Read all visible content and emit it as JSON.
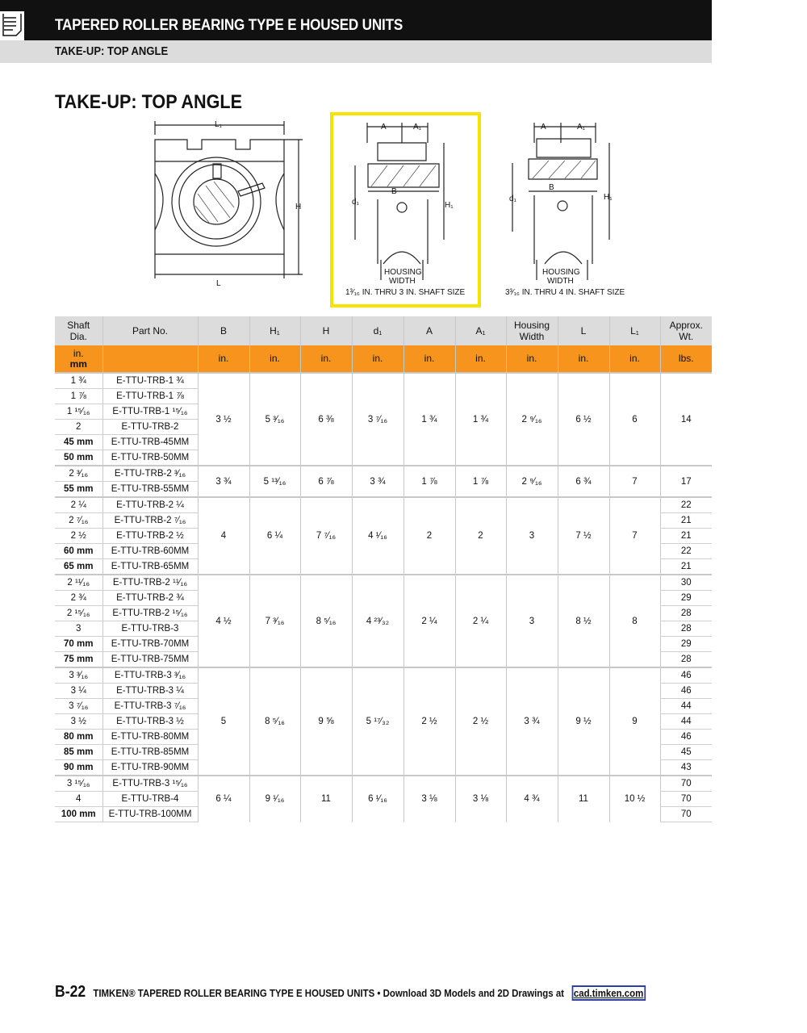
{
  "header": {
    "title": "TAPERED ROLLER BEARING TYPE E HOUSED UNITS",
    "subtitle": "TAKE-UP: TOP ANGLE",
    "icon": "document-list-icon"
  },
  "heading": "TAKE-UP: TOP ANGLE",
  "diagrams": {
    "left": {
      "L1": "L₁",
      "H": "H",
      "L": "L"
    },
    "middle": {
      "A": "A",
      "A1": "A₁",
      "B": "B",
      "d1": "d₁",
      "H1": "H₁",
      "housing1": "HOUSING",
      "housing2": "WIDTH",
      "caption": "1³⁄₁₆ IN. THRU 3 IN. SHAFT SIZE",
      "highlight_color": "#f5e400"
    },
    "right": {
      "A": "A",
      "A1": "A₁",
      "B": "B",
      "d1": "d₁",
      "H1": "H₁",
      "housing1": "HOUSING",
      "housing2": "WIDTH",
      "caption": "3³⁄₁₆ IN. THRU 4 IN. SHAFT SIZE"
    }
  },
  "table": {
    "columns": [
      "Shaft Dia.",
      "Part No.",
      "B",
      "H₁",
      "H",
      "d₁",
      "A",
      "A₁",
      "Housing Width",
      "L",
      "L₁",
      "Approx. Wt."
    ],
    "units": [
      "in. / mm",
      "",
      "in.",
      "in.",
      "in.",
      "in.",
      "in.",
      "in.",
      "in.",
      "in.",
      "in.",
      "lbs."
    ],
    "header_color": "#dcdcdc",
    "unit_row_color": "#f7941d",
    "groups": [
      {
        "rows": [
          [
            "1 ¾",
            "E-TTU-TRB-1 ¾"
          ],
          [
            "1 ⅞",
            "E-TTU-TRB-1 ⅞"
          ],
          [
            "1 ¹⁵⁄₁₆",
            "E-TTU-TRB-1 ¹⁵⁄₁₆"
          ],
          [
            "2",
            "E-TTU-TRB-2"
          ],
          [
            "45 mm",
            "E-TTU-TRB-45MM"
          ],
          [
            "50 mm",
            "E-TTU-TRB-50MM"
          ]
        ],
        "dims": [
          "3 ½",
          "5 ³⁄₁₆",
          "6 ⅜",
          "3 ⁷⁄₁₆",
          "1 ¾",
          "1 ¾",
          "2 ⁹⁄₁₆",
          "6 ½",
          "6"
        ],
        "weights": [
          "14"
        ]
      },
      {
        "rows": [
          [
            "2 ³⁄₁₆",
            "E-TTU-TRB-2 ³⁄₁₆"
          ],
          [
            "55 mm",
            "E-TTU-TRB-55MM"
          ]
        ],
        "dims": [
          "3 ¾",
          "5 ¹³⁄₁₆",
          "6 ⅞",
          "3 ¾",
          "1 ⅞",
          "1 ⅞",
          "2 ⁹⁄₁₆",
          "6 ¾",
          "7"
        ],
        "weights": [
          "17"
        ]
      },
      {
        "rows": [
          [
            "2 ¼",
            "E-TTU-TRB-2 ¼"
          ],
          [
            "2 ⁷⁄₁₆",
            "E-TTU-TRB-2 ⁷⁄₁₆"
          ],
          [
            "2 ½",
            "E-TTU-TRB-2 ½"
          ],
          [
            "60 mm",
            "E-TTU-TRB-60MM"
          ],
          [
            "65 mm",
            "E-TTU-TRB-65MM"
          ]
        ],
        "dims": [
          "4",
          "6 ¼",
          "7 ⁷⁄₁₆",
          "4 ¹⁄₁₆",
          "2",
          "2",
          "3",
          "7 ½",
          "7"
        ],
        "weights": [
          "22",
          "21",
          "21",
          "22",
          "21"
        ]
      },
      {
        "rows": [
          [
            "2 ¹¹⁄₁₆",
            "E-TTU-TRB-2 ¹¹⁄₁₆"
          ],
          [
            "2 ¾",
            "E-TTU-TRB-2 ¾"
          ],
          [
            "2 ¹⁵⁄₁₆",
            "E-TTU-TRB-2 ¹⁵⁄₁₆"
          ],
          [
            "3",
            "E-TTU-TRB-3"
          ],
          [
            "70 mm",
            "E-TTU-TRB-70MM"
          ],
          [
            "75 mm",
            "E-TTU-TRB-75MM"
          ]
        ],
        "dims": [
          "4 ½",
          "7 ³⁄₁₆",
          "8 ⁵⁄₁₆",
          "4 ²³⁄₃₂",
          "2 ¼",
          "2 ¼",
          "3",
          "8 ½",
          "8"
        ],
        "weights": [
          "30",
          "29",
          "28",
          "28",
          "29",
          "28"
        ]
      },
      {
        "rows": [
          [
            "3 ³⁄₁₆",
            "E-TTU-TRB-3 ³⁄₁₆"
          ],
          [
            "3 ¼",
            "E-TTU-TRB-3 ¼"
          ],
          [
            "3 ⁷⁄₁₆",
            "E-TTU-TRB-3 ⁷⁄₁₆"
          ],
          [
            "3 ½",
            "E-TTU-TRB-3 ½"
          ],
          [
            "80 mm",
            "E-TTU-TRB-80MM"
          ],
          [
            "85 mm",
            "E-TTU-TRB-85MM"
          ],
          [
            "90 mm",
            "E-TTU-TRB-90MM"
          ]
        ],
        "dims": [
          "5",
          "8 ⁵⁄₁₆",
          "9 ⅝",
          "5 ¹⁷⁄₃₂",
          "2 ½",
          "2 ½",
          "3 ¾",
          "9 ½",
          "9"
        ],
        "weights": [
          "46",
          "46",
          "44",
          "44",
          "46",
          "45",
          "43"
        ]
      },
      {
        "rows": [
          [
            "3 ¹⁵⁄₁₆",
            "E-TTU-TRB-3 ¹⁵⁄₁₆"
          ],
          [
            "4",
            "E-TTU-TRB-4"
          ],
          [
            "100 mm",
            "E-TTU-TRB-100MM"
          ]
        ],
        "dims": [
          "6 ¼",
          "9 ¹⁄₁₆",
          "11",
          "6 ¹⁄₁₆",
          "3 ⅛",
          "3 ⅛",
          "4 ¾",
          "11",
          "10 ½"
        ],
        "weights": [
          "70",
          "70",
          "70"
        ]
      }
    ]
  },
  "footer": {
    "page": "B-22",
    "text": "TIMKEN® TAPERED ROLLER BEARING TYPE E HOUSED UNITS • Download 3D Models and 2D Drawings at",
    "link": "cad.timken.com",
    "link_border_color": "#2b3fa8"
  }
}
